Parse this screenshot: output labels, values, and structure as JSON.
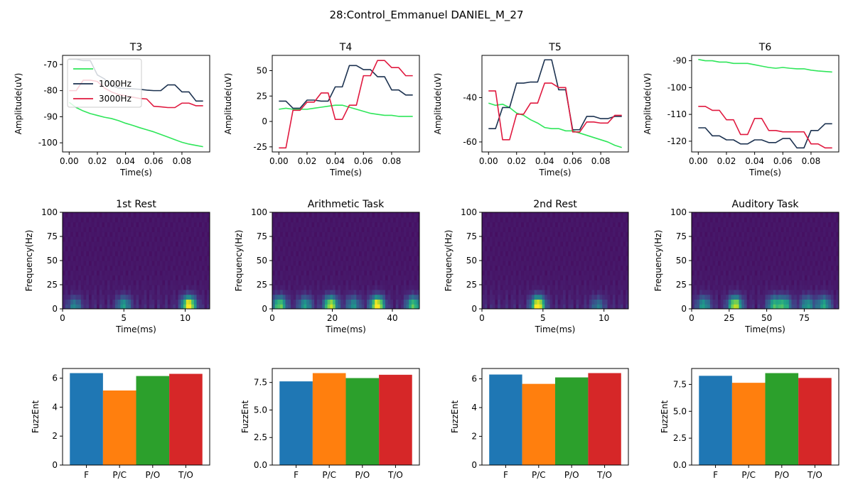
{
  "figure": {
    "suptitle": "28:Control_Emmanuel DANIEL_M_27"
  },
  "colors": {
    "green": "#2fe65a",
    "navy": "#1c3250",
    "crimson": "#e0193f",
    "bar_blue": "#1f77b4",
    "bar_orange": "#ff7f0e",
    "bar_green": "#2ca02c",
    "bar_red": "#d62728"
  },
  "chart_data": [
    {
      "id": "t3",
      "type": "line",
      "title": "T3",
      "xlabel": "Time(s)",
      "ylabel": "Amplitude(uV)",
      "xlim": [
        -0.0047,
        0.0997
      ],
      "ylim": [
        -103.5,
        -66.5
      ],
      "xticks": [
        "0.00",
        "0.02",
        "0.04",
        "0.06",
        "0.08"
      ],
      "xtick_values": [
        0,
        0.02,
        0.04,
        0.06,
        0.08
      ],
      "yticks": [
        "-70",
        "-80",
        "-90",
        "-100"
      ],
      "ytick_values": [
        -70,
        -80,
        -90,
        -100
      ],
      "legend": {
        "location": "upper-left",
        "entries": [
          "",
          "1000Hz",
          "3000Hz"
        ]
      },
      "x": [
        0,
        0.005,
        0.01,
        0.015,
        0.02,
        0.025,
        0.03,
        0.035,
        0.04,
        0.045,
        0.05,
        0.055,
        0.06,
        0.065,
        0.07,
        0.075,
        0.08,
        0.085,
        0.09,
        0.095
      ],
      "series": [
        {
          "color": "green",
          "values": [
            -84.5,
            -86.5,
            -87.8,
            -88.8,
            -89.5,
            -90.2,
            -90.7,
            -91.5,
            -92.5,
            -93.3,
            -94.2,
            -95.0,
            -95.8,
            -96.8,
            -97.8,
            -98.8,
            -99.8,
            -100.5,
            -101.0,
            -101.5
          ]
        },
        {
          "name": "1000Hz",
          "color": "navy",
          "values": [
            -68.0,
            -68.0,
            -68.5,
            -68.5,
            -74.0,
            -75.5,
            -78.0,
            -79.0,
            -79.2,
            -79.3,
            -79.5,
            -79.8,
            -80.0,
            -80.0,
            -77.8,
            -77.8,
            -80.5,
            -80.5,
            -84.0,
            -84.0
          ]
        },
        {
          "name": "3000Hz",
          "color": "crimson",
          "values": [
            -80.0,
            -80.0,
            -76.0,
            -76.0,
            -76.5,
            -79.0,
            -80.5,
            -81.5,
            -82.0,
            -82.5,
            -83.0,
            -83.2,
            -86.0,
            -86.2,
            -86.5,
            -86.5,
            -84.8,
            -84.8,
            -85.8,
            -85.8
          ]
        }
      ]
    },
    {
      "id": "t4",
      "type": "line",
      "title": "T4",
      "xlabel": "Time(s)",
      "ylabel": "Amplitude(uV)",
      "xlim": [
        -0.0047,
        0.0997
      ],
      "ylim": [
        -30,
        65
      ],
      "xticks": [
        "0.00",
        "0.02",
        "0.04",
        "0.06",
        "0.08"
      ],
      "xtick_values": [
        0,
        0.02,
        0.04,
        0.06,
        0.08
      ],
      "yticks": [
        "50",
        "25",
        "0",
        "-25"
      ],
      "ytick_values": [
        50,
        25,
        0,
        -25
      ],
      "x": [
        0,
        0.005,
        0.01,
        0.015,
        0.02,
        0.025,
        0.03,
        0.035,
        0.04,
        0.045,
        0.05,
        0.055,
        0.06,
        0.065,
        0.07,
        0.075,
        0.08,
        0.085,
        0.09,
        0.095
      ],
      "series": [
        {
          "color": "green",
          "values": [
            12,
            13,
            12,
            12,
            12,
            13,
            14,
            15,
            16,
            16,
            14,
            12,
            10,
            8,
            7,
            6,
            6,
            5,
            5,
            5
          ]
        },
        {
          "color": "navy",
          "values": [
            20,
            20,
            13,
            13,
            21,
            21,
            20,
            20,
            34,
            34,
            55,
            55,
            51,
            51,
            44,
            44,
            31,
            31,
            26,
            26
          ]
        },
        {
          "color": "crimson",
          "values": [
            -26,
            -26,
            11,
            11,
            19,
            19,
            28,
            28,
            2,
            2,
            16,
            16,
            45,
            45,
            60,
            60,
            53,
            53,
            45,
            45
          ]
        }
      ]
    },
    {
      "id": "t5",
      "type": "line",
      "title": "T5",
      "xlabel": "Time(s)",
      "ylabel": "Amplitude(uV)",
      "xlim": [
        -0.0047,
        0.0997
      ],
      "ylim": [
        -64.5,
        -21
      ],
      "xticks": [
        "0.00",
        "0.02",
        "0.04",
        "0.06",
        "0.08"
      ],
      "xtick_values": [
        0,
        0.02,
        0.04,
        0.06,
        0.08
      ],
      "yticks": [
        "-40",
        "-60"
      ],
      "ytick_values": [
        -40,
        -60
      ],
      "x": [
        0,
        0.005,
        0.01,
        0.015,
        0.02,
        0.025,
        0.03,
        0.035,
        0.04,
        0.045,
        0.05,
        0.055,
        0.06,
        0.065,
        0.07,
        0.075,
        0.08,
        0.085,
        0.09,
        0.095
      ],
      "series": [
        {
          "color": "green",
          "values": [
            -42.5,
            -43.5,
            -43.0,
            -44.5,
            -47.0,
            -48.0,
            -50.0,
            -51.5,
            -53.5,
            -54.0,
            -54.0,
            -55.0,
            -55.0,
            -56.0,
            -57.0,
            -58.0,
            -59.0,
            -60.0,
            -61.5,
            -62.5
          ]
        },
        {
          "color": "navy",
          "values": [
            -54.0,
            -54.0,
            -44.5,
            -44.5,
            -33.5,
            -33.5,
            -33.0,
            -33.0,
            -23.0,
            -23.0,
            -36.5,
            -36.5,
            -54.5,
            -54.5,
            -48.5,
            -48.5,
            -49.5,
            -49.5,
            -48.5,
            -48.5
          ]
        },
        {
          "color": "crimson",
          "values": [
            -37.0,
            -37.0,
            -59.0,
            -59.0,
            -47.5,
            -47.5,
            -42.5,
            -42.5,
            -33.5,
            -33.5,
            -35.5,
            -35.5,
            -55.5,
            -55.5,
            -51.0,
            -51.0,
            -51.5,
            -51.5,
            -48.0,
            -48.0
          ]
        }
      ]
    },
    {
      "id": "t6",
      "type": "line",
      "title": "T6",
      "xlabel": "Time(s)",
      "ylabel": "Amplitude(uV)",
      "xlim": [
        -0.0047,
        0.0997
      ],
      "ylim": [
        -124,
        -88
      ],
      "xticks": [
        "0.00",
        "0.02",
        "0.04",
        "0.06",
        "0.08"
      ],
      "xtick_values": [
        0,
        0.02,
        0.04,
        0.06,
        0.08
      ],
      "yticks": [
        "-90",
        "-100",
        "-110",
        "-120"
      ],
      "ytick_values": [
        -90,
        -100,
        -110,
        -120
      ],
      "x": [
        0,
        0.005,
        0.01,
        0.015,
        0.02,
        0.025,
        0.03,
        0.035,
        0.04,
        0.045,
        0.05,
        0.055,
        0.06,
        0.065,
        0.07,
        0.075,
        0.08,
        0.085,
        0.09,
        0.095
      ],
      "series": [
        {
          "color": "green",
          "values": [
            -89.5,
            -90.0,
            -90.0,
            -90.5,
            -90.5,
            -91.0,
            -91.0,
            -91.0,
            -91.5,
            -92.0,
            -92.5,
            -92.8,
            -92.5,
            -92.8,
            -93.0,
            -93.0,
            -93.5,
            -93.8,
            -94.0,
            -94.2
          ]
        },
        {
          "color": "navy",
          "values": [
            -115,
            -115,
            -118,
            -118,
            -119.5,
            -119.5,
            -121,
            -121,
            -119.5,
            -119.5,
            -120.5,
            -120.5,
            -119,
            -119,
            -122.5,
            -122.5,
            -116,
            -116,
            -113.5,
            -113.5
          ]
        },
        {
          "color": "crimson",
          "values": [
            -107,
            -107,
            -108.5,
            -108.5,
            -112,
            -112,
            -117.5,
            -117.5,
            -111.5,
            -111.5,
            -116,
            -116,
            -116.5,
            -116.5,
            -116.5,
            -116.5,
            -121,
            -121,
            -122.5,
            -122.5
          ]
        }
      ]
    },
    {
      "id": "spec1",
      "type": "heatmap",
      "title": "1st Rest",
      "xlabel": "Time(ms)",
      "ylabel": "Frequency(Hz)",
      "xlim": [
        0,
        12
      ],
      "ylim": [
        0,
        100
      ],
      "xticks": [
        "0",
        "5",
        "10"
      ],
      "xtick_values": [
        0,
        5,
        10
      ],
      "yticks": [
        "100",
        "75",
        "50",
        "25",
        "0"
      ],
      "ytick_values": [
        100,
        75,
        50,
        25,
        0
      ],
      "colormap": "viridis",
      "hotspots": [
        {
          "t": 10.3,
          "f": 4,
          "intensity": 1.0
        },
        {
          "t": 5,
          "f": 4,
          "intensity": 0.45
        },
        {
          "t": 1,
          "f": 3,
          "intensity": 0.35
        }
      ]
    },
    {
      "id": "spec2",
      "type": "heatmap",
      "title": "Arithmetic Task",
      "xlabel": "Time(ms)",
      "ylabel": "Frequency(Hz)",
      "xlim": [
        0,
        49
      ],
      "ylim": [
        0,
        100
      ],
      "xticks": [
        "0",
        "20",
        "40"
      ],
      "xtick_values": [
        0,
        20,
        40
      ],
      "yticks": [
        "100",
        "75",
        "50",
        "25",
        "0"
      ],
      "ytick_values": [
        100,
        75,
        50,
        25,
        0
      ],
      "colormap": "viridis",
      "hotspots": [
        {
          "t": 35,
          "f": 4,
          "intensity": 1.0
        },
        {
          "t": 19.5,
          "f": 4,
          "intensity": 0.85
        },
        {
          "t": 2.5,
          "f": 4,
          "intensity": 0.7
        },
        {
          "t": 47,
          "f": 4,
          "intensity": 0.65
        },
        {
          "t": 11,
          "f": 4,
          "intensity": 0.45
        },
        {
          "t": 27,
          "f": 4,
          "intensity": 0.4
        }
      ]
    },
    {
      "id": "spec3",
      "type": "heatmap",
      "title": "2nd Rest",
      "xlabel": "Time(ms)",
      "ylabel": "Frequency(Hz)",
      "xlim": [
        0,
        12
      ],
      "ylim": [
        0,
        100
      ],
      "xticks": [
        "0",
        "5",
        "10"
      ],
      "xtick_values": [
        0,
        5,
        10
      ],
      "yticks": [
        "100",
        "75",
        "50",
        "25",
        "0"
      ],
      "ytick_values": [
        100,
        75,
        50,
        25,
        0
      ],
      "colormap": "viridis",
      "hotspots": [
        {
          "t": 4.6,
          "f": 4,
          "intensity": 1.0
        },
        {
          "t": 9.5,
          "f": 3,
          "intensity": 0.3
        }
      ]
    },
    {
      "id": "spec4",
      "type": "heatmap",
      "title": "Auditory Task",
      "xlabel": "Time(ms)",
      "ylabel": "Frequency(Hz)",
      "xlim": [
        0,
        98
      ],
      "ylim": [
        0,
        100
      ],
      "xticks": [
        "0",
        "25",
        "50",
        "75"
      ],
      "xtick_values": [
        0,
        25,
        50,
        75
      ],
      "yticks": [
        "100",
        "75",
        "50",
        "25",
        "0"
      ],
      "ytick_values": [
        100,
        75,
        50,
        25,
        0
      ],
      "colormap": "viridis",
      "hotspots": [
        {
          "t": 29,
          "f": 4,
          "intensity": 0.85
        },
        {
          "t": 55,
          "f": 4,
          "intensity": 0.55
        },
        {
          "t": 62,
          "f": 4,
          "intensity": 0.55
        },
        {
          "t": 8,
          "f": 4,
          "intensity": 0.45
        },
        {
          "t": 77,
          "f": 4,
          "intensity": 0.45
        },
        {
          "t": 88,
          "f": 4,
          "intensity": 0.5
        }
      ]
    },
    {
      "id": "bar1",
      "type": "bar",
      "title": "",
      "xlabel": "",
      "ylabel": "FuzzEnt",
      "categories": [
        "F",
        "P/C",
        "P/O",
        "T/O"
      ],
      "values": [
        6.35,
        5.15,
        6.15,
        6.3
      ],
      "ylim": [
        0,
        6.67
      ],
      "yticks": [
        "0",
        "2",
        "4",
        "6"
      ],
      "ytick_values": [
        0,
        2,
        4,
        6
      ],
      "bar_colors": [
        "bar_blue",
        "bar_orange",
        "bar_green",
        "bar_red"
      ]
    },
    {
      "id": "bar2",
      "type": "bar",
      "title": "",
      "xlabel": "",
      "ylabel": "FuzzEnt",
      "categories": [
        "F",
        "P/C",
        "P/O",
        "T/O"
      ],
      "values": [
        7.6,
        8.35,
        7.9,
        8.2
      ],
      "ylim": [
        0,
        8.77
      ],
      "yticks": [
        "0.0",
        "2.5",
        "5.0",
        "7.5"
      ],
      "ytick_values": [
        0,
        2.5,
        5,
        7.5
      ],
      "bar_colors": [
        "bar_blue",
        "bar_orange",
        "bar_green",
        "bar_red"
      ]
    },
    {
      "id": "bar3",
      "type": "bar",
      "title": "",
      "xlabel": "",
      "ylabel": "FuzzEnt",
      "categories": [
        "F",
        "P/C",
        "P/O",
        "T/O"
      ],
      "values": [
        6.3,
        5.65,
        6.1,
        6.4
      ],
      "ylim": [
        0,
        6.72
      ],
      "yticks": [
        "0",
        "2",
        "4",
        "6"
      ],
      "ytick_values": [
        0,
        2,
        4,
        6
      ],
      "bar_colors": [
        "bar_blue",
        "bar_orange",
        "bar_green",
        "bar_red"
      ]
    },
    {
      "id": "bar4",
      "type": "bar",
      "title": "",
      "xlabel": "",
      "ylabel": "FuzzEnt",
      "categories": [
        "F",
        "P/C",
        "P/O",
        "T/O"
      ],
      "values": [
        8.3,
        7.65,
        8.55,
        8.1
      ],
      "ylim": [
        0,
        8.98
      ],
      "yticks": [
        "0.0",
        "2.5",
        "5.0",
        "7.5"
      ],
      "ytick_values": [
        0,
        2.5,
        5,
        7.5
      ],
      "bar_colors": [
        "bar_blue",
        "bar_orange",
        "bar_green",
        "bar_red"
      ]
    }
  ]
}
